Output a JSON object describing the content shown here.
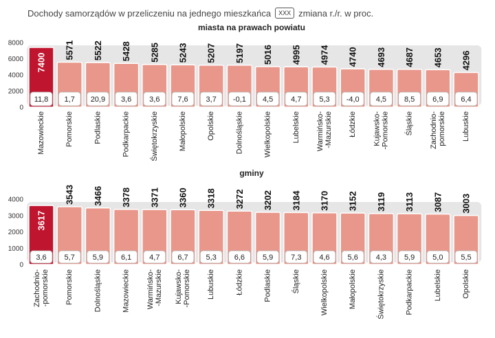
{
  "header": {
    "prefix": "Dochody samorządów w przeliczeniu na jednego mieszkańca",
    "legend_box": "XXX",
    "suffix": "zmiana r./r. w proc."
  },
  "colors": {
    "highlight": "#c0152f",
    "bar": "#e9978a",
    "band": "#e6e6e6"
  },
  "chart_data": [
    {
      "type": "bar",
      "title": "miasta na prawach powiatu",
      "categories": [
        "Mazowieckie",
        "Pomorskie",
        "Podlaskie",
        "Podkarpackie",
        "Świętokrzyskie",
        "Małopolskie",
        "Opolskie",
        "Dolnośląskie",
        "Wielkopolskie",
        "Lubelskie",
        "Warmińsko-\n-Mazurskie",
        "Łódzkie",
        "Kujawsko-\n-Pomorskie",
        "Śląskie",
        "Zachodnio-\npomorskie",
        "Lubuskie"
      ],
      "values": [
        7400,
        5571,
        5522,
        5428,
        5285,
        5243,
        5207,
        5197,
        5016,
        4995,
        4974,
        4740,
        4693,
        4687,
        4653,
        4296
      ],
      "changes": [
        "11,8",
        "1,7",
        "20,9",
        "3,6",
        "3,6",
        "7,6",
        "3,7",
        "-0,1",
        "4,5",
        "4,7",
        "5,3",
        "-4,0",
        "4,5",
        "8,5",
        "6,9",
        "6,4"
      ],
      "yticks": [
        "0",
        "2000",
        "4000",
        "6000",
        "8000"
      ],
      "ylim": [
        0,
        8000
      ],
      "highlight_index": 0
    },
    {
      "type": "bar",
      "title": "gminy",
      "categories": [
        "Zachodnio-\n-pomorskie",
        "Pomorskie",
        "Dolnośląskie",
        "Mazowieckie",
        "Warmińsko-\n-Mazurskie",
        "Kujawsko-\n-Pomorskie",
        "Lubuskie",
        "Łódzkie",
        "Podlaskie",
        "Śląskie",
        "Wielkopolskie",
        "Małopolskie",
        "Świętokrzyskie",
        "Podkarpackie",
        "Lubelskie",
        "Opolskie"
      ],
      "values": [
        3617,
        3543,
        3466,
        3378,
        3371,
        3360,
        3318,
        3272,
        3202,
        3184,
        3170,
        3152,
        3119,
        3113,
        3087,
        3003
      ],
      "changes": [
        "3,6",
        "5,7",
        "5,9",
        "6,1",
        "4,7",
        "6,7",
        "5,3",
        "6,6",
        "5,9",
        "7,3",
        "4,6",
        "5,6",
        "4,3",
        "5,9",
        "5,0",
        "5,5"
      ],
      "yticks": [
        "0",
        "1000",
        "2000",
        "3000",
        "4000"
      ],
      "ylim": [
        0,
        4000
      ],
      "highlight_index": 0
    }
  ]
}
